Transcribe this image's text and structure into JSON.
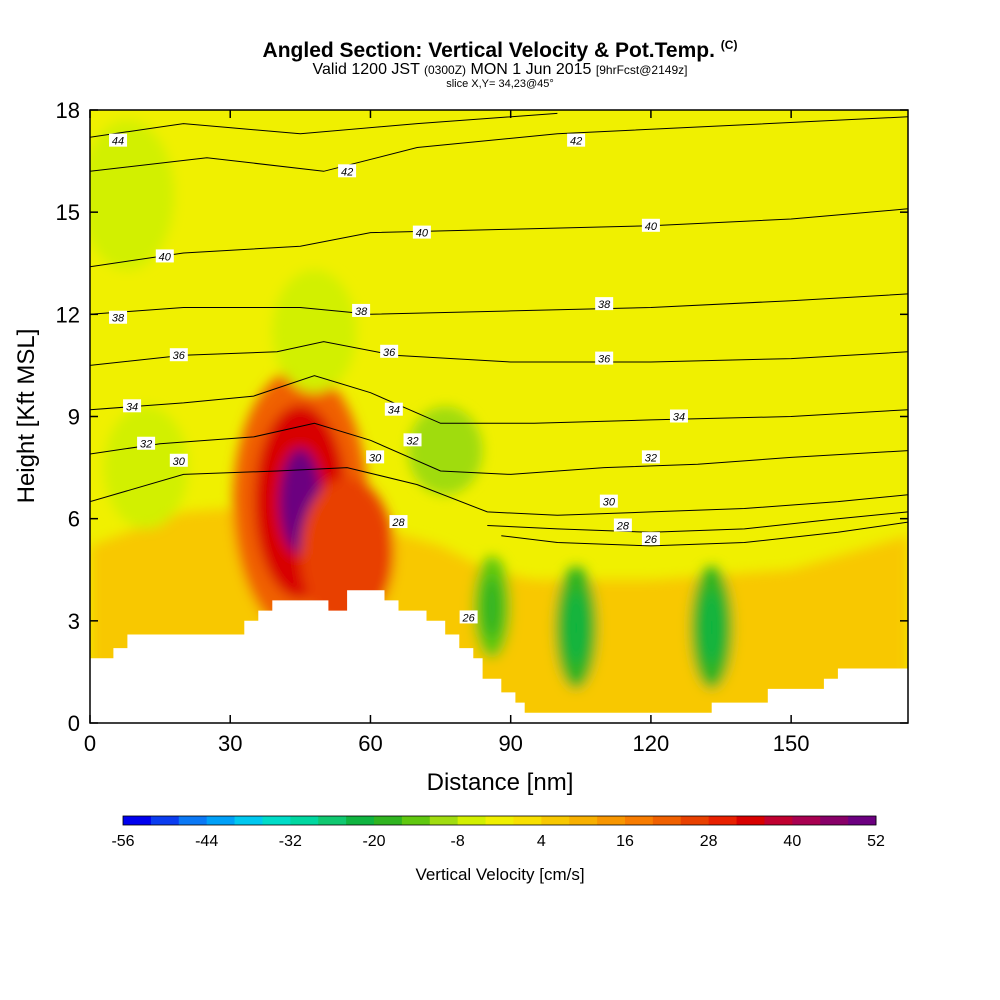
{
  "title": {
    "main": "Angled Section: Vertical Velocity & Pot.Temp.",
    "main_unit": "(C)",
    "valid_prefix": "Valid 1200 JST",
    "valid_utc": "(0300Z)",
    "valid_date": "MON 1 Jun 2015",
    "fcst": "[9hrFcst@2149z]",
    "slice": "slice X,Y= 34,23@45°"
  },
  "chart_data": {
    "type": "heatmap",
    "xlabel": "Distance [nm]",
    "ylabel": "Height [Kft MSL]",
    "xlim": [
      0,
      175
    ],
    "ylim": [
      0,
      18
    ],
    "xticks": [
      0,
      30,
      60,
      90,
      120,
      150
    ],
    "yticks": [
      0,
      3,
      6,
      9,
      12,
      15,
      18
    ],
    "colorbar": {
      "label": "Vertical Velocity [cm/s]",
      "ticks": [
        -56,
        -44,
        -32,
        -20,
        -8,
        4,
        16,
        28,
        40,
        52
      ],
      "colors": [
        "#0000ee",
        "#0a3cf0",
        "#0a78f5",
        "#00a0f8",
        "#00c8f0",
        "#00dcc8",
        "#00d7a0",
        "#10c870",
        "#10b440",
        "#30b420",
        "#60c810",
        "#a0dc10",
        "#d2f000",
        "#f0f000",
        "#f8e000",
        "#f8c800",
        "#f8b000",
        "#f89600",
        "#f87c00",
        "#f06000",
        "#e84000",
        "#e82000",
        "#d80000",
        "#c00030",
        "#a80050",
        "#880068",
        "#6c0080"
      ],
      "min": -56,
      "max": 52
    },
    "terrain_kft": [
      [
        0,
        1.9
      ],
      [
        5,
        2.2
      ],
      [
        8,
        2.6
      ],
      [
        15,
        2.6
      ],
      [
        20,
        2.6
      ],
      [
        29,
        2.6
      ],
      [
        33,
        3.0
      ],
      [
        36,
        3.3
      ],
      [
        39,
        3.6
      ],
      [
        49,
        3.6
      ],
      [
        51,
        3.3
      ],
      [
        55,
        3.9
      ],
      [
        60,
        3.9
      ],
      [
        63,
        3.6
      ],
      [
        66,
        3.3
      ],
      [
        72,
        3.0
      ],
      [
        76,
        2.6
      ],
      [
        79,
        2.2
      ],
      [
        82,
        1.9
      ],
      [
        84,
        1.3
      ],
      [
        88,
        0.9
      ],
      [
        91,
        0.6
      ],
      [
        93,
        0.3
      ],
      [
        130,
        0.3
      ],
      [
        133,
        0.6
      ],
      [
        142,
        0.6
      ],
      [
        145,
        1.0
      ],
      [
        152,
        1.0
      ],
      [
        157,
        1.3
      ],
      [
        160,
        1.6
      ],
      [
        175,
        1.6
      ]
    ],
    "velocity_features": [
      {
        "x": 45,
        "y": 6.5,
        "value": 50
      },
      {
        "x": 55,
        "y": 5.0,
        "value": 24
      },
      {
        "x": 104,
        "y": 2.8,
        "value": -20
      },
      {
        "x": 86,
        "y": 3.4,
        "value": -16
      },
      {
        "x": 133,
        "y": 2.8,
        "value": -20
      },
      {
        "x": 48,
        "y": 11.5,
        "value": -8
      },
      {
        "x": 76,
        "y": 8.0,
        "value": -10
      },
      {
        "x": 12,
        "y": 7.5,
        "value": -8
      },
      {
        "x": 8,
        "y": 15.5,
        "value": -5
      }
    ],
    "isentropes": [
      {
        "theta": 26,
        "points": [
          [
            88,
            5.5
          ],
          [
            100,
            5.3
          ],
          [
            120,
            5.2
          ],
          [
            140,
            5.3
          ],
          [
            160,
            5.6
          ],
          [
            175,
            5.9
          ]
        ]
      },
      {
        "theta": 28,
        "points": [
          [
            85,
            5.8
          ],
          [
            100,
            5.7
          ],
          [
            120,
            5.6
          ],
          [
            140,
            5.7
          ],
          [
            160,
            6.0
          ],
          [
            175,
            6.2
          ]
        ]
      },
      {
        "theta": 30,
        "points": [
          [
            0,
            6.5
          ],
          [
            20,
            7.3
          ],
          [
            40,
            7.4
          ],
          [
            55,
            7.5
          ],
          [
            70,
            7.0
          ],
          [
            85,
            6.2
          ],
          [
            100,
            6.1
          ],
          [
            120,
            6.2
          ],
          [
            140,
            6.3
          ],
          [
            160,
            6.5
          ],
          [
            175,
            6.7
          ]
        ]
      },
      {
        "theta": 32,
        "points": [
          [
            0,
            7.9
          ],
          [
            15,
            8.2
          ],
          [
            35,
            8.4
          ],
          [
            48,
            8.8
          ],
          [
            60,
            8.3
          ],
          [
            75,
            7.4
          ],
          [
            90,
            7.3
          ],
          [
            110,
            7.5
          ],
          [
            130,
            7.6
          ],
          [
            150,
            7.8
          ],
          [
            175,
            8.0
          ]
        ]
      },
      {
        "theta": 34,
        "points": [
          [
            0,
            9.2
          ],
          [
            20,
            9.4
          ],
          [
            35,
            9.6
          ],
          [
            48,
            10.2
          ],
          [
            60,
            9.7
          ],
          [
            75,
            8.8
          ],
          [
            95,
            8.8
          ],
          [
            120,
            8.9
          ],
          [
            150,
            9.0
          ],
          [
            175,
            9.2
          ]
        ]
      },
      {
        "theta": 36,
        "points": [
          [
            0,
            10.5
          ],
          [
            20,
            10.8
          ],
          [
            40,
            10.9
          ],
          [
            50,
            11.2
          ],
          [
            65,
            10.8
          ],
          [
            90,
            10.6
          ],
          [
            120,
            10.6
          ],
          [
            150,
            10.7
          ],
          [
            175,
            10.9
          ]
        ]
      },
      {
        "theta": 38,
        "points": [
          [
            0,
            12.0
          ],
          [
            20,
            12.2
          ],
          [
            45,
            12.2
          ],
          [
            60,
            12.0
          ],
          [
            90,
            12.1
          ],
          [
            120,
            12.2
          ],
          [
            150,
            12.4
          ],
          [
            175,
            12.6
          ]
        ]
      },
      {
        "theta": 40,
        "points": [
          [
            0,
            13.4
          ],
          [
            20,
            13.8
          ],
          [
            45,
            14.0
          ],
          [
            60,
            14.4
          ],
          [
            90,
            14.5
          ],
          [
            120,
            14.6
          ],
          [
            150,
            14.8
          ],
          [
            175,
            15.1
          ]
        ]
      },
      {
        "theta": 42,
        "points": [
          [
            0,
            16.2
          ],
          [
            25,
            16.6
          ],
          [
            50,
            16.2
          ],
          [
            70,
            16.9
          ],
          [
            100,
            17.3
          ],
          [
            130,
            17.5
          ],
          [
            175,
            17.8
          ]
        ]
      },
      {
        "theta": 44,
        "points": [
          [
            0,
            17.2
          ],
          [
            20,
            17.6
          ],
          [
            45,
            17.3
          ],
          [
            70,
            17.6
          ],
          [
            100,
            17.9
          ]
        ]
      }
    ],
    "contour_labels": [
      {
        "text": "44",
        "x": 6,
        "y": 17.1
      },
      {
        "text": "42",
        "x": 55,
        "y": 16.2
      },
      {
        "text": "42",
        "x": 104,
        "y": 17.1
      },
      {
        "text": "40",
        "x": 16,
        "y": 13.7
      },
      {
        "text": "40",
        "x": 71,
        "y": 14.4
      },
      {
        "text": "40",
        "x": 120,
        "y": 14.6
      },
      {
        "text": "38",
        "x": 6,
        "y": 11.9
      },
      {
        "text": "38",
        "x": 58,
        "y": 12.1
      },
      {
        "text": "38",
        "x": 110,
        "y": 12.3
      },
      {
        "text": "36",
        "x": 19,
        "y": 10.8
      },
      {
        "text": "36",
        "x": 64,
        "y": 10.9
      },
      {
        "text": "36",
        "x": 110,
        "y": 10.7
      },
      {
        "text": "34",
        "x": 9,
        "y": 9.3
      },
      {
        "text": "34",
        "x": 65,
        "y": 9.2
      },
      {
        "text": "34",
        "x": 126,
        "y": 9.0
      },
      {
        "text": "32",
        "x": 12,
        "y": 8.2
      },
      {
        "text": "32",
        "x": 69,
        "y": 8.3
      },
      {
        "text": "32",
        "x": 120,
        "y": 7.8
      },
      {
        "text": "30",
        "x": 19,
        "y": 7.7
      },
      {
        "text": "30",
        "x": 61,
        "y": 7.8
      },
      {
        "text": "30",
        "x": 111,
        "y": 6.5
      },
      {
        "text": "28",
        "x": 66,
        "y": 5.9
      },
      {
        "text": "28",
        "x": 114,
        "y": 5.8
      },
      {
        "text": "26",
        "x": 81,
        "y": 3.1
      },
      {
        "text": "26",
        "x": 120,
        "y": 5.4
      }
    ]
  }
}
